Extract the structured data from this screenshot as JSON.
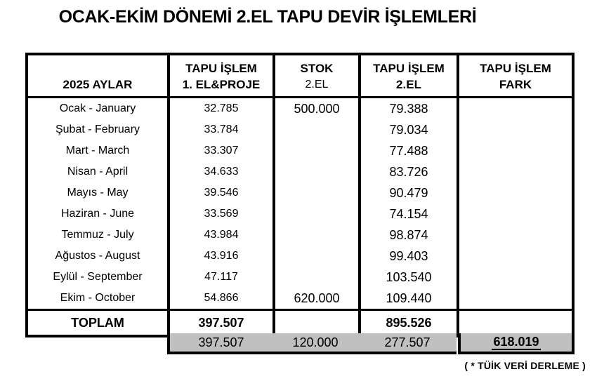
{
  "title": "OCAK-EKİM DÖNEMİ 2.EL TAPU DEVİR İŞLEMLERİ",
  "table": {
    "headers": {
      "months": "2025 AYLAR",
      "col2_line1": "TAPU İŞLEM",
      "col2_line2": "1. EL&PROJE",
      "col3_line1": "STOK",
      "col3_line2": "2.EL",
      "col4_line1": "TAPU İŞLEM",
      "col4_line2": "2.EL",
      "col5_line1": "TAPU İŞLEM",
      "col5_line2": "FARK"
    },
    "rows": [
      {
        "month": "Ocak - January",
        "first_hand": "32.785",
        "stock": "500.000",
        "second_hand": "79.388",
        "diff": ""
      },
      {
        "month": "Şubat - February",
        "first_hand": "33.784",
        "stock": "",
        "second_hand": "79.034",
        "diff": ""
      },
      {
        "month": "Mart - March",
        "first_hand": "33.307",
        "stock": "",
        "second_hand": "77.488",
        "diff": ""
      },
      {
        "month": "Nisan - April",
        "first_hand": "34.633",
        "stock": "",
        "second_hand": "83.726",
        "diff": ""
      },
      {
        "month": "Mayıs - May",
        "first_hand": "39.546",
        "stock": "",
        "second_hand": "90.479",
        "diff": ""
      },
      {
        "month": "Haziran - June",
        "first_hand": "33.569",
        "stock": "",
        "second_hand": "74.154",
        "diff": ""
      },
      {
        "month": "Temmuz - July",
        "first_hand": "43.984",
        "stock": "",
        "second_hand": "98.874",
        "diff": ""
      },
      {
        "month": "Ağustos - August",
        "first_hand": "43.916",
        "stock": "",
        "second_hand": "99.403",
        "diff": ""
      },
      {
        "month": "Eylül - September",
        "first_hand": "47.117",
        "stock": "",
        "second_hand": "103.540",
        "diff": ""
      },
      {
        "month": "Ekim - October",
        "first_hand": "54.866",
        "stock": "620.000",
        "second_hand": "109.440",
        "diff": ""
      }
    ],
    "total": {
      "label": "TOPLAM",
      "first_hand": "397.507",
      "stock": "",
      "second_hand": "895.526",
      "diff": ""
    },
    "summary": {
      "first_hand": "397.507",
      "stock": "120.000",
      "second_hand": "277.507",
      "diff": "618.019"
    }
  },
  "footnote": "( * TÜİK VERİ DERLEME )",
  "colors": {
    "border": "#000000",
    "gray_fill": "#c0c0c0",
    "background": "#ffffff",
    "text": "#000000"
  }
}
